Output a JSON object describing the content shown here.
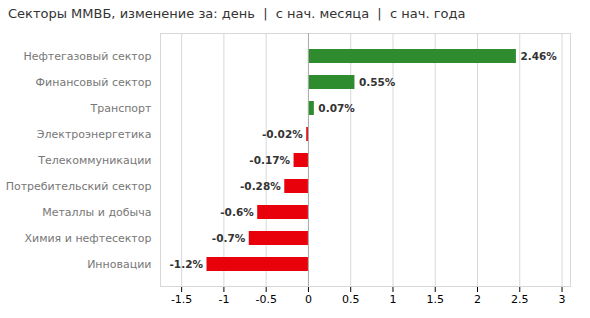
{
  "chart_data": {
    "type": "bar",
    "orientation": "horizontal",
    "title": "Секторы ММВБ, изменение за: день  |  с нач. месяца  |  с нач. года",
    "categories": [
      "Инновации",
      "Химия и нефтесектор",
      "Металлы и добыча",
      "Потребительский сектор",
      "Телекоммуникации",
      "Электроэнергетика",
      "Транспорт",
      "Финансовый сектор",
      "Нефтегазовый сектор"
    ],
    "values": [
      -1.2,
      -0.7,
      -0.6,
      -0.28,
      -0.17,
      -0.02,
      0.07,
      0.55,
      2.46
    ],
    "value_labels": [
      "-1.2%",
      "-0.7%",
      "-0.6%",
      "-0.28%",
      "-0.17%",
      "-0.02%",
      "0.07%",
      "0.55%",
      "2.46%"
    ],
    "colors": [
      "#e8000a",
      "#e8000a",
      "#e8000a",
      "#e8000a",
      "#e8000a",
      "#e8000a",
      "#2e8b2e",
      "#2e8b2e",
      "#2e8b2e"
    ],
    "data_labels": true,
    "xlim": [
      -1.75,
      3.1
    ],
    "xticks": [
      -1.5,
      -1,
      -0.5,
      0,
      0.5,
      1,
      1.5,
      2,
      2.5,
      3
    ],
    "grid": true
  }
}
